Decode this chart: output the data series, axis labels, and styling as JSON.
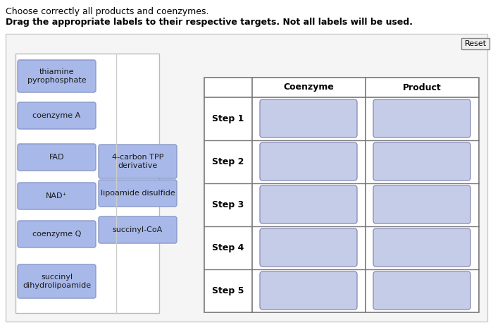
{
  "title1": "Choose correctly all products and coenzymes.",
  "title2": "Drag the appropriate labels to their respective targets. Not all labels will be used.",
  "bg_color": "#ffffff",
  "panel_bg": "#f5f5f5",
  "panel_edge": "#cccccc",
  "inner_panel_bg": "#ffffff",
  "inner_panel_edge": "#bbbbbb",
  "label_box_color": "#a8b8e8",
  "label_box_edge": "#8898c8",
  "empty_box_color": "#c5cce8",
  "empty_box_edge": "#9090bb",
  "left_labels_col1": [
    "thiamine\npyrophosphate",
    "coenzyme A",
    "FAD",
    "NAD⁺",
    "coenzyme Q",
    "succinyl\ndihydrolipoamide"
  ],
  "left_labels_col2": [
    "4-carbon TPP\nderivative",
    "lipoamide disulfide",
    "succinyl-CoA"
  ],
  "table_headers": [
    "",
    "Coenzyme",
    "Product"
  ],
  "table_rows": [
    "Step 1",
    "Step 2",
    "Step 3",
    "Step 4",
    "Step 5"
  ],
  "reset_label": "Reset",
  "font_size_title1": 9,
  "font_size_title2": 9,
  "font_size_labels": 8,
  "font_size_table": 9,
  "font_size_reset": 8
}
